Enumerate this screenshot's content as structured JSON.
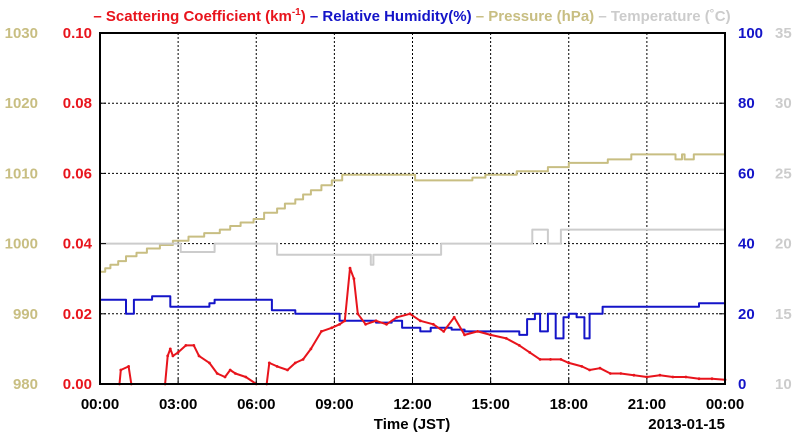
{
  "chart_data": {
    "type": "line",
    "xlabel": "Time (JST)",
    "date_label": "2013-01-15",
    "x_ticks": [
      "00:00",
      "03:00",
      "06:00",
      "09:00",
      "12:00",
      "15:00",
      "18:00",
      "21:00",
      "00:00"
    ],
    "xlim_hours": [
      0,
      24
    ],
    "grid": true,
    "legend": [
      {
        "prefix": "– ",
        "text": "Scattering Coefficient (km",
        "sup": "-1",
        "suffix": ")",
        "color": "#e8141c"
      },
      {
        "prefix": "– ",
        "text": "Relative Humidity(%)",
        "sup": "",
        "suffix": "",
        "color": "#1414c8"
      },
      {
        "prefix": "– ",
        "text": "Pressure (hPa)",
        "sup": "",
        "suffix": "",
        "color": "#c8be82"
      },
      {
        "prefix": "– ",
        "text": "Temperature (˚C)",
        "sup": "",
        "suffix": "",
        "color": "#cccccc"
      }
    ],
    "axes": {
      "pressure": {
        "side": "left-outer",
        "color": "#c8be82",
        "ylim": [
          980,
          1030
        ],
        "ticks": [
          "980",
          "990",
          "1000",
          "1010",
          "1020",
          "1030"
        ]
      },
      "scattering": {
        "side": "left-inner",
        "color": "#e8141c",
        "ylim": [
          0,
          0.1
        ],
        "ticks": [
          "0.00",
          "0.02",
          "0.04",
          "0.06",
          "0.08",
          "0.10"
        ]
      },
      "humidity": {
        "side": "right-inner",
        "color": "#1414c8",
        "ylim": [
          0,
          100
        ],
        "ticks": [
          "0",
          "20",
          "40",
          "60",
          "80",
          "100"
        ]
      },
      "temperature": {
        "side": "right-outer",
        "color": "#cccccc",
        "ylim": [
          10,
          35
        ],
        "ticks": [
          "10",
          "15",
          "20",
          "25",
          "30",
          "35"
        ]
      }
    },
    "series": [
      {
        "name": "Pressure (hPa)",
        "axis": "pressure",
        "color": "#c8be82",
        "step": true,
        "points": [
          [
            0.0,
            996.0
          ],
          [
            0.2,
            996.5
          ],
          [
            0.4,
            997.0
          ],
          [
            0.7,
            997.5
          ],
          [
            1.0,
            998.2
          ],
          [
            1.4,
            998.7
          ],
          [
            1.8,
            999.3
          ],
          [
            2.3,
            999.8
          ],
          [
            2.8,
            1000.4
          ],
          [
            3.4,
            1001.0
          ],
          [
            4.0,
            1001.5
          ],
          [
            4.6,
            1002.0
          ],
          [
            5.0,
            1002.5
          ],
          [
            5.4,
            1003.0
          ],
          [
            5.9,
            1003.5
          ],
          [
            6.3,
            1004.4
          ],
          [
            6.8,
            1005.0
          ],
          [
            7.1,
            1005.7
          ],
          [
            7.5,
            1006.3
          ],
          [
            7.8,
            1007.0
          ],
          [
            8.1,
            1007.6
          ],
          [
            8.5,
            1008.3
          ],
          [
            8.9,
            1009.0
          ],
          [
            9.3,
            1009.8
          ],
          [
            10.4,
            1009.8
          ],
          [
            11.8,
            1009.8
          ],
          [
            12.1,
            1009.0
          ],
          [
            13.7,
            1009.0
          ],
          [
            14.3,
            1009.4
          ],
          [
            14.8,
            1009.8
          ],
          [
            16.0,
            1010.3
          ],
          [
            17.2,
            1010.9
          ],
          [
            18.0,
            1011.5
          ],
          [
            19.5,
            1012.0
          ],
          [
            20.4,
            1012.7
          ],
          [
            21.9,
            1012.7
          ],
          [
            22.1,
            1012.0
          ],
          [
            22.35,
            1012.7
          ],
          [
            22.45,
            1012.0
          ],
          [
            22.8,
            1012.7
          ],
          [
            24.0,
            1012.7
          ]
        ]
      },
      {
        "name": "Temperature (˚C)",
        "axis": "temperature",
        "color": "#cccccc",
        "step": true,
        "points": [
          [
            0.0,
            20.0
          ],
          [
            3.0,
            20.0
          ],
          [
            3.1,
            19.4
          ],
          [
            4.3,
            19.4
          ],
          [
            4.4,
            20.0
          ],
          [
            6.6,
            20.0
          ],
          [
            6.8,
            19.2
          ],
          [
            10.3,
            19.2
          ],
          [
            10.4,
            18.5
          ],
          [
            10.5,
            19.2
          ],
          [
            13.0,
            19.2
          ],
          [
            13.1,
            20.0
          ],
          [
            16.5,
            20.0
          ],
          [
            16.6,
            21.0
          ],
          [
            17.1,
            21.0
          ],
          [
            17.2,
            20.0
          ],
          [
            17.6,
            20.0
          ],
          [
            17.7,
            21.0
          ],
          [
            24.0,
            21.0
          ]
        ]
      },
      {
        "name": "Relative Humidity(%)",
        "axis": "humidity",
        "color": "#1414c8",
        "step": true,
        "points": [
          [
            0.0,
            24.0
          ],
          [
            0.9,
            24.0
          ],
          [
            1.0,
            20.0
          ],
          [
            1.2,
            20.0
          ],
          [
            1.3,
            24.0
          ],
          [
            1.9,
            24.0
          ],
          [
            2.0,
            25.0
          ],
          [
            2.6,
            25.0
          ],
          [
            2.7,
            22.0
          ],
          [
            3.1,
            22.0
          ],
          [
            3.5,
            22.0
          ],
          [
            4.1,
            22.0
          ],
          [
            4.2,
            23.0
          ],
          [
            4.4,
            24.0
          ],
          [
            5.3,
            24.0
          ],
          [
            6.0,
            24.0
          ],
          [
            6.5,
            24.0
          ],
          [
            6.6,
            21.0
          ],
          [
            7.3,
            21.0
          ],
          [
            7.5,
            20.0
          ],
          [
            8.5,
            20.0
          ],
          [
            9.2,
            18.0
          ],
          [
            10.2,
            18.0
          ],
          [
            10.6,
            17.5
          ],
          [
            11.2,
            18.0
          ],
          [
            11.6,
            16.0
          ],
          [
            12.3,
            15.0
          ],
          [
            12.7,
            16.0
          ],
          [
            13.5,
            15.5
          ],
          [
            14.0,
            15.0
          ],
          [
            15.5,
            15.0
          ],
          [
            16.1,
            14.0
          ],
          [
            16.4,
            18.5
          ],
          [
            16.7,
            20.0
          ],
          [
            16.9,
            15.0
          ],
          [
            17.2,
            20.0
          ],
          [
            17.5,
            13.0
          ],
          [
            17.8,
            19.0
          ],
          [
            18.0,
            20.0
          ],
          [
            18.3,
            19.0
          ],
          [
            18.6,
            13.0
          ],
          [
            18.8,
            20.0
          ],
          [
            19.2,
            20.0
          ],
          [
            19.3,
            22.0
          ],
          [
            22.9,
            22.0
          ],
          [
            23.0,
            23.0
          ],
          [
            24.0,
            23.0
          ]
        ]
      },
      {
        "name": "Scattering Coefficient (km-1)",
        "axis": "scattering",
        "color": "#e8141c",
        "step": false,
        "points": [
          [
            0.75,
            0.0
          ],
          [
            0.8,
            0.004
          ],
          [
            1.1,
            0.005
          ],
          [
            1.2,
            0.0
          ],
          [
            2.5,
            0.0
          ],
          [
            2.6,
            0.008
          ],
          [
            2.7,
            0.01
          ],
          [
            2.8,
            0.008
          ],
          [
            3.0,
            0.009
          ],
          [
            3.3,
            0.011
          ],
          [
            3.6,
            0.011
          ],
          [
            3.8,
            0.008
          ],
          [
            4.2,
            0.006
          ],
          [
            4.5,
            0.003
          ],
          [
            4.8,
            0.002
          ],
          [
            5.0,
            0.004
          ],
          [
            5.2,
            0.003
          ],
          [
            5.6,
            0.002
          ],
          [
            6.0,
            0.0
          ],
          [
            6.4,
            0.0
          ],
          [
            6.5,
            0.006
          ],
          [
            6.8,
            0.005
          ],
          [
            7.2,
            0.004
          ],
          [
            7.5,
            0.006
          ],
          [
            7.8,
            0.007
          ],
          [
            8.1,
            0.01
          ],
          [
            8.5,
            0.015
          ],
          [
            8.9,
            0.016
          ],
          [
            9.2,
            0.017
          ],
          [
            9.4,
            0.018
          ],
          [
            9.6,
            0.033
          ],
          [
            9.75,
            0.03
          ],
          [
            9.9,
            0.02
          ],
          [
            10.2,
            0.017
          ],
          [
            10.6,
            0.018
          ],
          [
            11.0,
            0.017
          ],
          [
            11.4,
            0.019
          ],
          [
            11.9,
            0.02
          ],
          [
            12.3,
            0.018
          ],
          [
            12.8,
            0.017
          ],
          [
            13.2,
            0.015
          ],
          [
            13.6,
            0.019
          ],
          [
            14.0,
            0.014
          ],
          [
            14.5,
            0.015
          ],
          [
            15.0,
            0.014
          ],
          [
            15.6,
            0.013
          ],
          [
            16.1,
            0.011
          ],
          [
            16.5,
            0.009
          ],
          [
            16.9,
            0.007
          ],
          [
            17.3,
            0.007
          ],
          [
            17.7,
            0.007
          ],
          [
            18.0,
            0.006
          ],
          [
            18.5,
            0.005
          ],
          [
            18.8,
            0.004
          ],
          [
            19.2,
            0.0045
          ],
          [
            19.6,
            0.003
          ],
          [
            20.0,
            0.003
          ],
          [
            20.5,
            0.0025
          ],
          [
            21.0,
            0.002
          ],
          [
            21.5,
            0.0025
          ],
          [
            22.0,
            0.002
          ],
          [
            22.5,
            0.002
          ],
          [
            23.0,
            0.0015
          ],
          [
            23.5,
            0.0015
          ],
          [
            24.0,
            0.0012
          ]
        ]
      }
    ]
  }
}
